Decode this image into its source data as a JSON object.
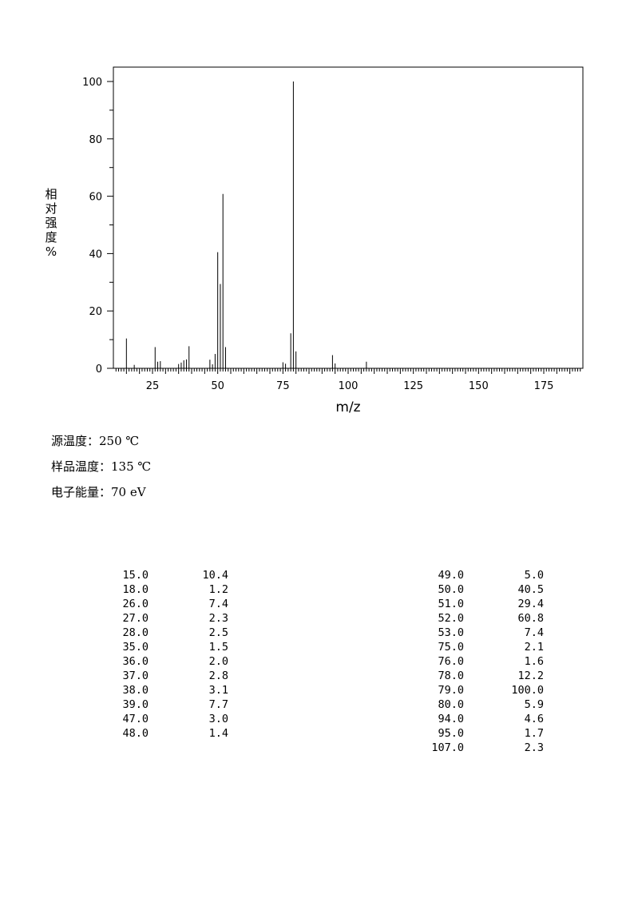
{
  "chart_data": {
    "type": "bar",
    "ylabel_chars": [
      "相",
      "对",
      "强",
      "度",
      "%"
    ],
    "xlabel": "m/z",
    "xlim": [
      10,
      190
    ],
    "ylim": [
      0,
      100
    ],
    "xticks": [
      25,
      50,
      75,
      100,
      125,
      150,
      175
    ],
    "yticks": [
      0,
      20,
      40,
      60,
      80,
      100
    ],
    "grid": false,
    "peaks": [
      {
        "mz": 15.0,
        "intensity": 10.4
      },
      {
        "mz": 18.0,
        "intensity": 1.2
      },
      {
        "mz": 26.0,
        "intensity": 7.4
      },
      {
        "mz": 27.0,
        "intensity": 2.3
      },
      {
        "mz": 28.0,
        "intensity": 2.5
      },
      {
        "mz": 35.0,
        "intensity": 1.5
      },
      {
        "mz": 36.0,
        "intensity": 2.0
      },
      {
        "mz": 37.0,
        "intensity": 2.8
      },
      {
        "mz": 38.0,
        "intensity": 3.1
      },
      {
        "mz": 39.0,
        "intensity": 7.7
      },
      {
        "mz": 47.0,
        "intensity": 3.0
      },
      {
        "mz": 48.0,
        "intensity": 1.4
      },
      {
        "mz": 49.0,
        "intensity": 5.0
      },
      {
        "mz": 50.0,
        "intensity": 40.5
      },
      {
        "mz": 51.0,
        "intensity": 29.4
      },
      {
        "mz": 52.0,
        "intensity": 60.8
      },
      {
        "mz": 53.0,
        "intensity": 7.4
      },
      {
        "mz": 75.0,
        "intensity": 2.1
      },
      {
        "mz": 76.0,
        "intensity": 1.6
      },
      {
        "mz": 78.0,
        "intensity": 12.2
      },
      {
        "mz": 79.0,
        "intensity": 100.0
      },
      {
        "mz": 80.0,
        "intensity": 5.9
      },
      {
        "mz": 94.0,
        "intensity": 4.6
      },
      {
        "mz": 95.0,
        "intensity": 1.7
      },
      {
        "mz": 107.0,
        "intensity": 2.3
      }
    ]
  },
  "conditions": [
    "源温度：250 ℃",
    "样品温度：135 ℃",
    "电子能量：70 eV"
  ],
  "table": {
    "left": [
      [
        "15.0",
        "10.4"
      ],
      [
        "18.0",
        "1.2"
      ],
      [
        "26.0",
        "7.4"
      ],
      [
        "27.0",
        "2.3"
      ],
      [
        "28.0",
        "2.5"
      ],
      [
        "35.0",
        "1.5"
      ],
      [
        "36.0",
        "2.0"
      ],
      [
        "37.0",
        "2.8"
      ],
      [
        "38.0",
        "3.1"
      ],
      [
        "39.0",
        "7.7"
      ],
      [
        "47.0",
        "3.0"
      ],
      [
        "48.0",
        "1.4"
      ]
    ],
    "right": [
      [
        "49.0",
        "5.0"
      ],
      [
        "50.0",
        "40.5"
      ],
      [
        "51.0",
        "29.4"
      ],
      [
        "52.0",
        "60.8"
      ],
      [
        "53.0",
        "7.4"
      ],
      [
        "75.0",
        "2.1"
      ],
      [
        "76.0",
        "1.6"
      ],
      [
        "78.0",
        "12.2"
      ],
      [
        "79.0",
        "100.0"
      ],
      [
        "80.0",
        "5.9"
      ],
      [
        "94.0",
        "4.6"
      ],
      [
        "95.0",
        "1.7"
      ],
      [
        "107.0",
        "2.3"
      ]
    ]
  }
}
